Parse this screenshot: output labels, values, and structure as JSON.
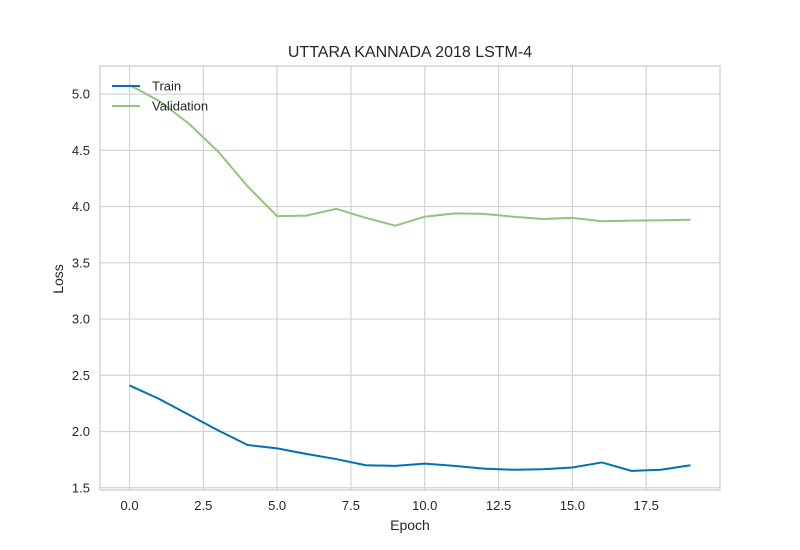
{
  "chart_data": {
    "type": "line",
    "title": "UTTARA KANNADA 2018 LSTM-4",
    "xlabel": "Epoch",
    "ylabel": "Loss",
    "xlim": [
      -1.0,
      20.0
    ],
    "ylim": [
      1.48,
      5.25
    ],
    "xticks": [
      0.0,
      2.5,
      5.0,
      7.5,
      10.0,
      12.5,
      15.0,
      17.5
    ],
    "xtick_labels": [
      "0.0",
      "2.5",
      "5.0",
      "7.5",
      "10.0",
      "12.5",
      "15.0",
      "17.5"
    ],
    "yticks": [
      1.5,
      2.0,
      2.5,
      3.0,
      3.5,
      4.0,
      4.5,
      5.0
    ],
    "ytick_labels": [
      "1.5",
      "2.0",
      "2.5",
      "3.0",
      "3.5",
      "4.0",
      "4.5",
      "5.0"
    ],
    "grid": true,
    "legend_position": "top-left",
    "x": [
      0,
      1,
      2,
      3,
      4,
      5,
      6,
      7,
      8,
      9,
      10,
      11,
      12,
      13,
      14,
      15,
      16,
      17,
      18,
      19
    ],
    "series": [
      {
        "name": "Train",
        "color": "#0072b2",
        "values": [
          2.41,
          2.29,
          2.15,
          2.01,
          1.88,
          1.85,
          1.8,
          1.755,
          1.7,
          1.695,
          1.715,
          1.695,
          1.67,
          1.66,
          1.665,
          1.68,
          1.725,
          1.65,
          1.66,
          1.7
        ]
      },
      {
        "name": "Validation",
        "color": "#93c47d",
        "values": [
          5.08,
          4.94,
          4.74,
          4.49,
          4.18,
          3.915,
          3.92,
          3.98,
          3.9,
          3.83,
          3.91,
          3.94,
          3.935,
          3.91,
          3.89,
          3.9,
          3.87,
          3.875,
          3.878,
          3.883
        ]
      }
    ]
  }
}
